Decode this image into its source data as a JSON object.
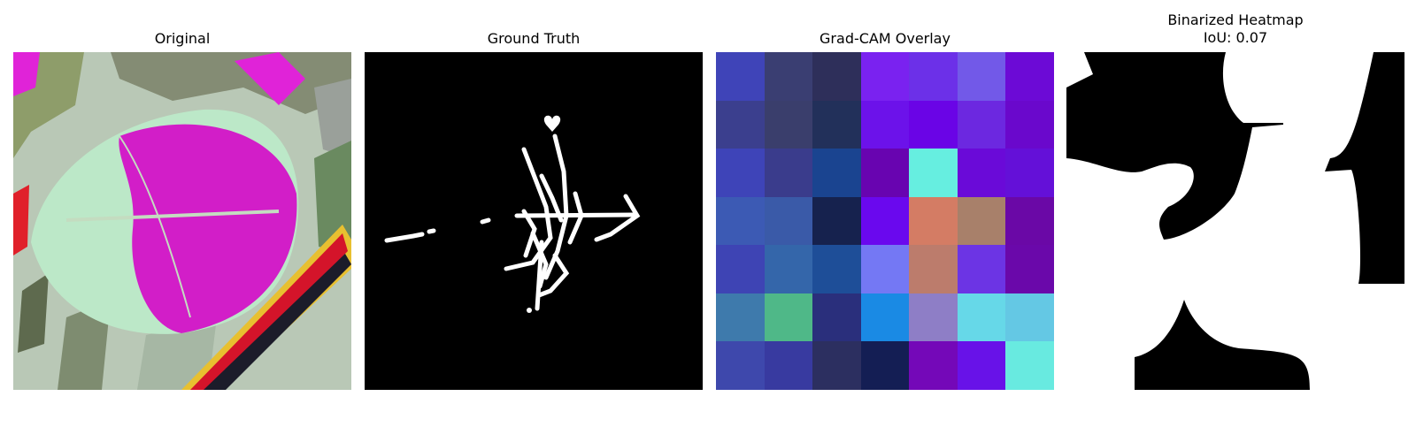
{
  "panels": {
    "original": {
      "title": "Original"
    },
    "ground_truth": {
      "title": "Ground Truth"
    },
    "gradcam": {
      "title": "Grad-CAM Overlay",
      "grid": [
        [
          "#3f44b8",
          "#3a3e72",
          "#2e2f5a",
          "#7a22f0",
          "#6c30e8",
          "#7259e8",
          "#6c0ad6"
        ],
        [
          "#3b3f8e",
          "#3a3e6c",
          "#22305a",
          "#6c12ea",
          "#6a04e6",
          "#6c28e0",
          "#6a08cc"
        ],
        [
          "#3e44b8",
          "#3a3c8c",
          "#1a4490",
          "#6804b0",
          "#66eee0",
          "#6a0ad8",
          "#6410d8"
        ],
        [
          "#3c5ab4",
          "#3a5aa8",
          "#16224e",
          "#6a08ee",
          "#d47c64",
          "#a8806a",
          "#6a08a6"
        ],
        [
          "#3e44b4",
          "#3466aa",
          "#1e4e98",
          "#7478f4",
          "#bc7c6c",
          "#6c34e4",
          "#6a08aa"
        ],
        [
          "#3e7aac",
          "#4fb888",
          "#2a2f7c",
          "#1a8ae4",
          "#8e7ec6",
          "#66d8e8",
          "#64c8e4"
        ],
        [
          "#3e48ac",
          "#383aa0",
          "#2c2f60",
          "#141e54",
          "#7408b8",
          "#6812e8",
          "#68eae0"
        ]
      ]
    },
    "binarized": {
      "title": "Binarized Heatmap\nIoU: 0.07"
    }
  }
}
